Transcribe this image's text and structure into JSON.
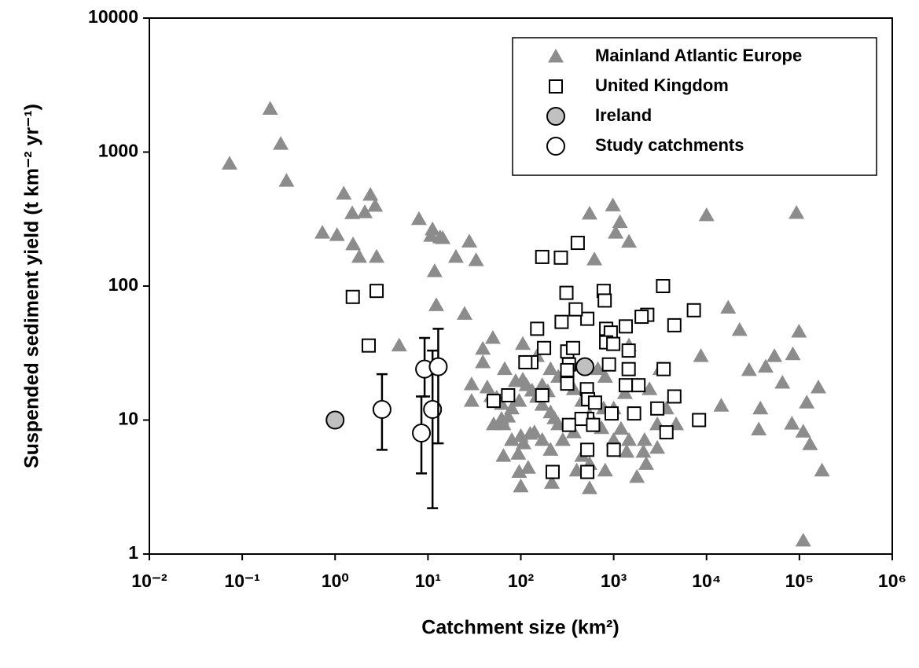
{
  "chart_data": {
    "type": "scatter",
    "xlabel": "Catchment size (km²)",
    "ylabel": "Suspended sediment yield (t km⁻² yr⁻¹)",
    "xscale": "log",
    "yscale": "log",
    "xlim": [
      0.01,
      1000000
    ],
    "ylim": [
      1,
      10000
    ],
    "xticks": [
      {
        "value": 0.01,
        "label": "10⁻²"
      },
      {
        "value": 0.1,
        "label": "10⁻¹"
      },
      {
        "value": 1,
        "label": "10⁰"
      },
      {
        "value": 10,
        "label": "10¹"
      },
      {
        "value": 100,
        "label": "10²"
      },
      {
        "value": 1000,
        "label": "10³"
      },
      {
        "value": 10000,
        "label": "10⁴"
      },
      {
        "value": 100000,
        "label": "10⁵"
      },
      {
        "value": 1000000,
        "label": "10⁶"
      }
    ],
    "yticks": [
      1,
      10,
      100,
      1000,
      10000
    ],
    "legend": "upper right",
    "series": [
      {
        "name": "Mainland Atlantic Europe",
        "marker": "triangle",
        "color": "#8c8c8c",
        "x": [
          0.073,
          0.2,
          0.26,
          0.3,
          0.73,
          1.05,
          1.24,
          1.53,
          1.56,
          1.82,
          2.09,
          2.4,
          2.7,
          2.8,
          4.9,
          8.0,
          11.2,
          10.8,
          11.8,
          12.3,
          13.5,
          14.4,
          20,
          24.8,
          27.9,
          33,
          39,
          50,
          39,
          29.5,
          29.5,
          43.5,
          48,
          55,
          62,
          62,
          51,
          65,
          67,
          73,
          80,
          88,
          96,
          100,
          65,
          80,
          94,
          96,
          100,
          105,
          105,
          107,
          115,
          120,
          126,
          132,
          140,
          149,
          149,
          170,
          170,
          170,
          195,
          209,
          209,
          209,
          216,
          230,
          253,
          253,
          283,
          372,
          372,
          400,
          457,
          457,
          550,
          550,
          550,
          550,
          620,
          676,
          740,
          780,
          810,
          810,
          980,
          1000,
          1000,
          1050,
          1170,
          1200,
          1320,
          1380,
          1460,
          1460,
          1460,
          1780,
          1780,
          2090,
          2150,
          2240,
          2430,
          2950,
          2950,
          3170,
          3700,
          4700,
          8700,
          10000,
          14400,
          17100,
          22700,
          28700,
          36500,
          38000,
          43300,
          53800,
          65600,
          83000,
          85000,
          93000,
          99000,
          110000,
          120000,
          130000,
          160000,
          175000,
          110000
        ],
        "values": [
          820,
          2100,
          1150,
          610,
          250,
          240,
          490,
          350,
          205,
          165,
          355,
          480,
          397,
          165,
          36,
          316,
          265,
          237,
          129,
          72,
          231,
          228,
          165,
          62,
          215,
          156,
          34,
          41,
          27,
          18.5,
          13.9,
          17.5,
          15.1,
          14.7,
          13.2,
          10.2,
          9.3,
          9.3,
          24,
          10.6,
          12.2,
          19.5,
          13.9,
          7.6,
          5.4,
          7.1,
          5.6,
          4.1,
          3.2,
          37,
          20,
          6.7,
          18.2,
          4.4,
          7.9,
          16.6,
          8.1,
          30,
          14.9,
          18.2,
          13,
          7.1,
          16.4,
          24,
          11.4,
          6.0,
          3.4,
          10.3,
          21,
          9.3,
          7.1,
          17,
          8.1,
          4.2,
          13.9,
          5.4,
          10.9,
          4.7,
          3.1,
          347,
          158,
          24,
          8.7,
          12.2,
          21,
          4.2,
          400,
          12.2,
          7.1,
          250,
          300,
          8.6,
          15.9,
          5.8,
          214,
          36,
          7.1,
          18.2,
          3.76,
          5.8,
          7.1,
          4.7,
          17,
          9.3,
          6.2,
          24,
          12.2,
          9.3,
          30,
          338,
          12.8,
          69,
          47,
          23.6,
          8.5,
          12.2,
          25,
          30,
          19,
          9.4,
          31,
          351,
          45.7,
          8.2,
          13.5,
          6.6,
          17.5,
          4.2,
          1.26
        ]
      },
      {
        "name": "United Kingdom",
        "marker": "square",
        "color": "#ffffff",
        "x": [
          1.55,
          2.8,
          2.3,
          51,
          170,
          270,
          410,
          310,
          780,
          800,
          3400,
          7300,
          4500,
          2300,
          2000,
          1350,
          830,
          930,
          830,
          990,
          275,
          150,
          178,
          130,
          316,
          365,
          520,
          390,
          1450,
          890,
          330,
          316,
          1450,
          3450,
          1350,
          1850,
          515,
          530,
          630,
          316,
          112,
          73,
          170,
          4500,
          2950,
          1660,
          950,
          520,
          450,
          600,
          330,
          8300,
          3700,
          1000,
          520,
          520,
          220
        ],
        "values": [
          83,
          92,
          36,
          13.9,
          165,
          163,
          210,
          89,
          92,
          78,
          100,
          66,
          51,
          61,
          59,
          50,
          48,
          45,
          38,
          37,
          54,
          48,
          34.5,
          27,
          32.5,
          34.5,
          57,
          67,
          33,
          26,
          26,
          23.6,
          24,
          24,
          18.2,
          18.2,
          17,
          14.3,
          13.5,
          18.7,
          27,
          15.3,
          15.3,
          15,
          12.2,
          11.2,
          11.2,
          10.2,
          10.2,
          9.2,
          9.2,
          10,
          8.1,
          6.0,
          6.0,
          4.1,
          4.1
        ]
      },
      {
        "name": "Ireland",
        "marker": "circle",
        "color": "#c0c0c0",
        "x": [
          1,
          490
        ],
        "values": [
          10,
          25
        ]
      },
      {
        "name": "Study catchments",
        "marker": "circle",
        "color": "#ffffff",
        "x": [
          3.2,
          8.5,
          9.2,
          11.2,
          12.9
        ],
        "values": [
          12,
          8,
          24,
          12,
          25
        ],
        "y_upper": [
          22,
          15,
          41,
          33,
          48
        ],
        "y_lower": [
          6,
          4,
          15,
          2.2,
          6.7
        ]
      }
    ]
  }
}
